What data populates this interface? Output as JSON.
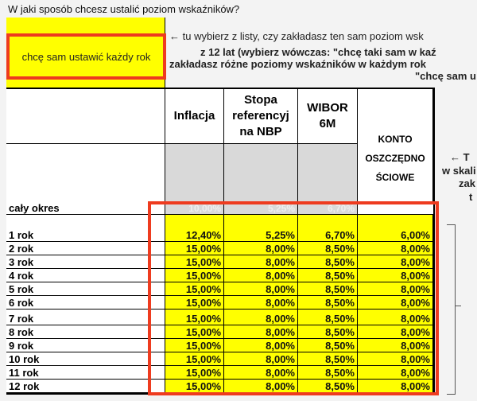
{
  "question": "W jaki sposób chcesz ustalić poziom wskaźników?",
  "selection": {
    "value": "chcę sam ustawić każdy rok"
  },
  "instructions": [
    "← tu wybierz z listy, czy zakładasz ten sam poziom wsk",
    "z 12 lat (wybierz wówczas: \"chcę taki sam w kaź",
    "zakładasz różne poziomy wskaźników w każdym rok",
    "\"chcę sam u"
  ],
  "side_note": [
    "← T",
    "w skali",
    "zak",
    "t"
  ],
  "table": {
    "columns": [
      "Inflacja",
      "Stopa referencyj na NBP",
      "WIBOR 6M",
      "KONTO OSZCZĘDNO ŚCIOWE"
    ],
    "whole_period": {
      "label": "cały okres",
      "values": [
        "10,00%",
        "5,25%",
        "6,70%",
        ""
      ]
    },
    "rows": [
      {
        "label": "1 rok",
        "values": [
          "12,40%",
          "5,25%",
          "6,70%",
          "6,00%"
        ]
      },
      {
        "label": "2 rok",
        "values": [
          "15,00%",
          "8,00%",
          "8,50%",
          "8,00%"
        ]
      },
      {
        "label": "3 rok",
        "values": [
          "15,00%",
          "8,00%",
          "8,50%",
          "8,00%"
        ]
      },
      {
        "label": "4 rok",
        "values": [
          "15,00%",
          "8,00%",
          "8,50%",
          "8,00%"
        ]
      },
      {
        "label": "5 rok",
        "values": [
          "15,00%",
          "8,00%",
          "8,50%",
          "8,00%"
        ]
      },
      {
        "label": "6 rok",
        "values": [
          "15,00%",
          "8,00%",
          "8,50%",
          "8,00%"
        ]
      },
      {
        "label": "7 rok",
        "values": [
          "15,00%",
          "8,00%",
          "8,50%",
          "8,00%"
        ]
      },
      {
        "label": "8 rok",
        "values": [
          "15,00%",
          "8,00%",
          "8,50%",
          "8,00%"
        ]
      },
      {
        "label": "9 rok",
        "values": [
          "15,00%",
          "8,00%",
          "8,50%",
          "8,00%"
        ]
      },
      {
        "label": "10 rok",
        "values": [
          "15,00%",
          "8,00%",
          "8,50%",
          "8,00%"
        ]
      },
      {
        "label": "11 rok",
        "values": [
          "15,00%",
          "8,00%",
          "8,50%",
          "8,00%"
        ]
      },
      {
        "label": "12 rok",
        "values": [
          "15,00%",
          "8,00%",
          "8,50%",
          "8,00%"
        ]
      }
    ]
  },
  "colors": {
    "input_fill": "#ffff00",
    "highlight": "#ee3b1f",
    "locked": "#d9d9d9"
  }
}
